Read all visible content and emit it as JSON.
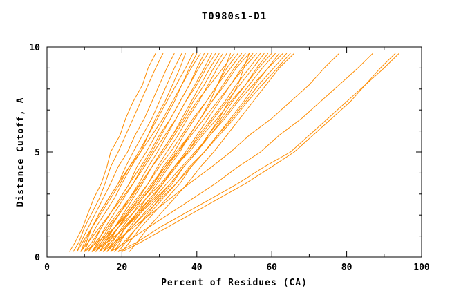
{
  "chart": {
    "title": "T0980s1-D1"
  },
  "chart_data": {
    "type": "line",
    "title": "T0980s1-D1",
    "xlabel": "Percent of Residues (CA)",
    "ylabel": "Distance Cutoff, A",
    "xlim": [
      0,
      100
    ],
    "ylim": [
      0,
      10
    ],
    "x_ticks": [
      0,
      20,
      40,
      60,
      80,
      100
    ],
    "x_minor_ticks": [
      10,
      30,
      50,
      70,
      90
    ],
    "y_ticks": [
      0,
      5,
      10
    ],
    "y_minor_ticks": [
      1,
      2,
      3,
      4,
      6,
      7,
      8,
      9
    ],
    "grid": false,
    "legend_position": "none",
    "line_color": "#ff8c00",
    "axis_color": "#000000",
    "background_color": "#ffffff",
    "y_levels": [
      0.25,
      0.7,
      1.4,
      2.1,
      2.8,
      3.5,
      4.3,
      5.0,
      5.8,
      6.6,
      7.4,
      8.2,
      9.0,
      9.7
    ],
    "series_x": [
      [
        6,
        7.5,
        9.5,
        11,
        12.5,
        14.5,
        16,
        17,
        19.5,
        21,
        23,
        25.5,
        27,
        29
      ],
      [
        7,
        8.5,
        10,
        12,
        14,
        15.5,
        17,
        19,
        21,
        23,
        25,
        27,
        29,
        31
      ],
      [
        8,
        9,
        11,
        13,
        15,
        17,
        19,
        21.5,
        23.5,
        26,
        28,
        30,
        32,
        34
      ],
      [
        9,
        10.5,
        12,
        14,
        16.5,
        19,
        21,
        23,
        25.5,
        28,
        30,
        32,
        34,
        36
      ],
      [
        10,
        11,
        13,
        15.5,
        18,
        20,
        22.5,
        25,
        27,
        29,
        31.5,
        33.5,
        35.5,
        37
      ],
      [
        8,
        9.5,
        12,
        14.5,
        17,
        19.5,
        22,
        24.5,
        27,
        29.5,
        32,
        34.5,
        37,
        39
      ],
      [
        11,
        12.5,
        14.5,
        17,
        19.5,
        22,
        24,
        26.5,
        29,
        31.5,
        34,
        36,
        38,
        40
      ],
      [
        9,
        10,
        12,
        14,
        16.5,
        19,
        22,
        25,
        28,
        31,
        33.5,
        36,
        38.5,
        41
      ],
      [
        12,
        13.5,
        15.5,
        18,
        20.5,
        23,
        25.5,
        28,
        30.5,
        33,
        35.5,
        38,
        40,
        42
      ],
      [
        10,
        12,
        14.5,
        17,
        19.5,
        22,
        25,
        27.5,
        30,
        33,
        35.5,
        38,
        40.5,
        43
      ],
      [
        13,
        14.5,
        17,
        19.5,
        22,
        24.5,
        27,
        29.5,
        32,
        34.5,
        37,
        39.5,
        42,
        44
      ],
      [
        9,
        11,
        14,
        17,
        20,
        23,
        26,
        28.5,
        31.5,
        34.5,
        37,
        40,
        42.5,
        45
      ],
      [
        14,
        15.5,
        18,
        20.5,
        23,
        25.5,
        28,
        30.5,
        33.5,
        36,
        38.5,
        41,
        43.5,
        46
      ],
      [
        12,
        14,
        16.5,
        19.5,
        22.5,
        25,
        28,
        30.5,
        33.5,
        36.5,
        39,
        42,
        44.5,
        47
      ],
      [
        15,
        16.5,
        19,
        21.5,
        24.5,
        27,
        29.5,
        32,
        35,
        37.5,
        40.5,
        43,
        45.5,
        48
      ],
      [
        10,
        13.5,
        18,
        22,
        25.5,
        29,
        32,
        35,
        38,
        41,
        43.5,
        45.5,
        47.5,
        49
      ],
      [
        11,
        13,
        16,
        19,
        22,
        25,
        28,
        31,
        34,
        37,
        40,
        43.5,
        47,
        50
      ],
      [
        16,
        17.5,
        20,
        23,
        25.5,
        28.5,
        31,
        34,
        36.5,
        39.5,
        42.5,
        45.5,
        48,
        51
      ],
      [
        13,
        15,
        18,
        21,
        24,
        27,
        30,
        33,
        36,
        39,
        42.5,
        45.5,
        49,
        52
      ],
      [
        17,
        18.5,
        21,
        24,
        26.5,
        29.5,
        32.5,
        35.5,
        38,
        41,
        44,
        47,
        50,
        53
      ],
      [
        12,
        16,
        21,
        25,
        29,
        33,
        36.5,
        40,
        43,
        46,
        48.5,
        51,
        52.5,
        54
      ],
      [
        14,
        16,
        19,
        22,
        25.5,
        28.5,
        31.5,
        34.5,
        38,
        41,
        44,
        47.5,
        50.5,
        54
      ],
      [
        18,
        19.5,
        22,
        25,
        28,
        31,
        34,
        37,
        40,
        43,
        46,
        49,
        52,
        55
      ],
      [
        12,
        14.5,
        18,
        21.5,
        25,
        28,
        31.5,
        35,
        38.5,
        42,
        45.5,
        49,
        52.5,
        56
      ],
      [
        16,
        18,
        21,
        24.5,
        27.5,
        31,
        34,
        37.5,
        40.5,
        44,
        47.5,
        50.5,
        54,
        57
      ],
      [
        15,
        17,
        20.5,
        24,
        27.5,
        31,
        34.5,
        37.5,
        41,
        44.5,
        48,
        51.5,
        55,
        58
      ],
      [
        19,
        21,
        24,
        27,
        30,
        33.5,
        36.5,
        40,
        43,
        46.5,
        49.5,
        53,
        56,
        59
      ],
      [
        13,
        15.5,
        19,
        23,
        26.5,
        30.5,
        34,
        38,
        41.5,
        45.5,
        49,
        53,
        56.5,
        60
      ],
      [
        17,
        19,
        22.5,
        26,
        29.5,
        33,
        36.5,
        40,
        43.5,
        47,
        50.5,
        54,
        57.5,
        61
      ],
      [
        20,
        22,
        25,
        28.5,
        32,
        35.5,
        38.5,
        42,
        45.5,
        49,
        52.5,
        55.5,
        59,
        62
      ],
      [
        14,
        17,
        20.5,
        24.5,
        28.5,
        32,
        36,
        39.5,
        43.5,
        47.5,
        51,
        55,
        59,
        63
      ],
      [
        18,
        20.5,
        24,
        27.5,
        31,
        34.5,
        38.5,
        42,
        45.5,
        49.5,
        53,
        56.5,
        60.5,
        64
      ],
      [
        16,
        18.5,
        22.5,
        26.5,
        30.5,
        34.5,
        38,
        42,
        46,
        50,
        53.5,
        57.5,
        61.5,
        65
      ],
      [
        22,
        24,
        27,
        30.5,
        34,
        37.5,
        41,
        44.5,
        48,
        51.5,
        55,
        58.5,
        62,
        66
      ],
      [
        15,
        18,
        23,
        28,
        33,
        38,
        44,
        49,
        54,
        60,
        65,
        70,
        74,
        78
      ],
      [
        17,
        21,
        27,
        33,
        39,
        45,
        51,
        57,
        62,
        68,
        73,
        78,
        83,
        87
      ],
      [
        20,
        25,
        32,
        39,
        46,
        53,
        60,
        66,
        71,
        76,
        81,
        85,
        89,
        93
      ],
      [
        19,
        24,
        30,
        37,
        44,
        51,
        58,
        65,
        70,
        75,
        80,
        85,
        90,
        94
      ]
    ]
  }
}
